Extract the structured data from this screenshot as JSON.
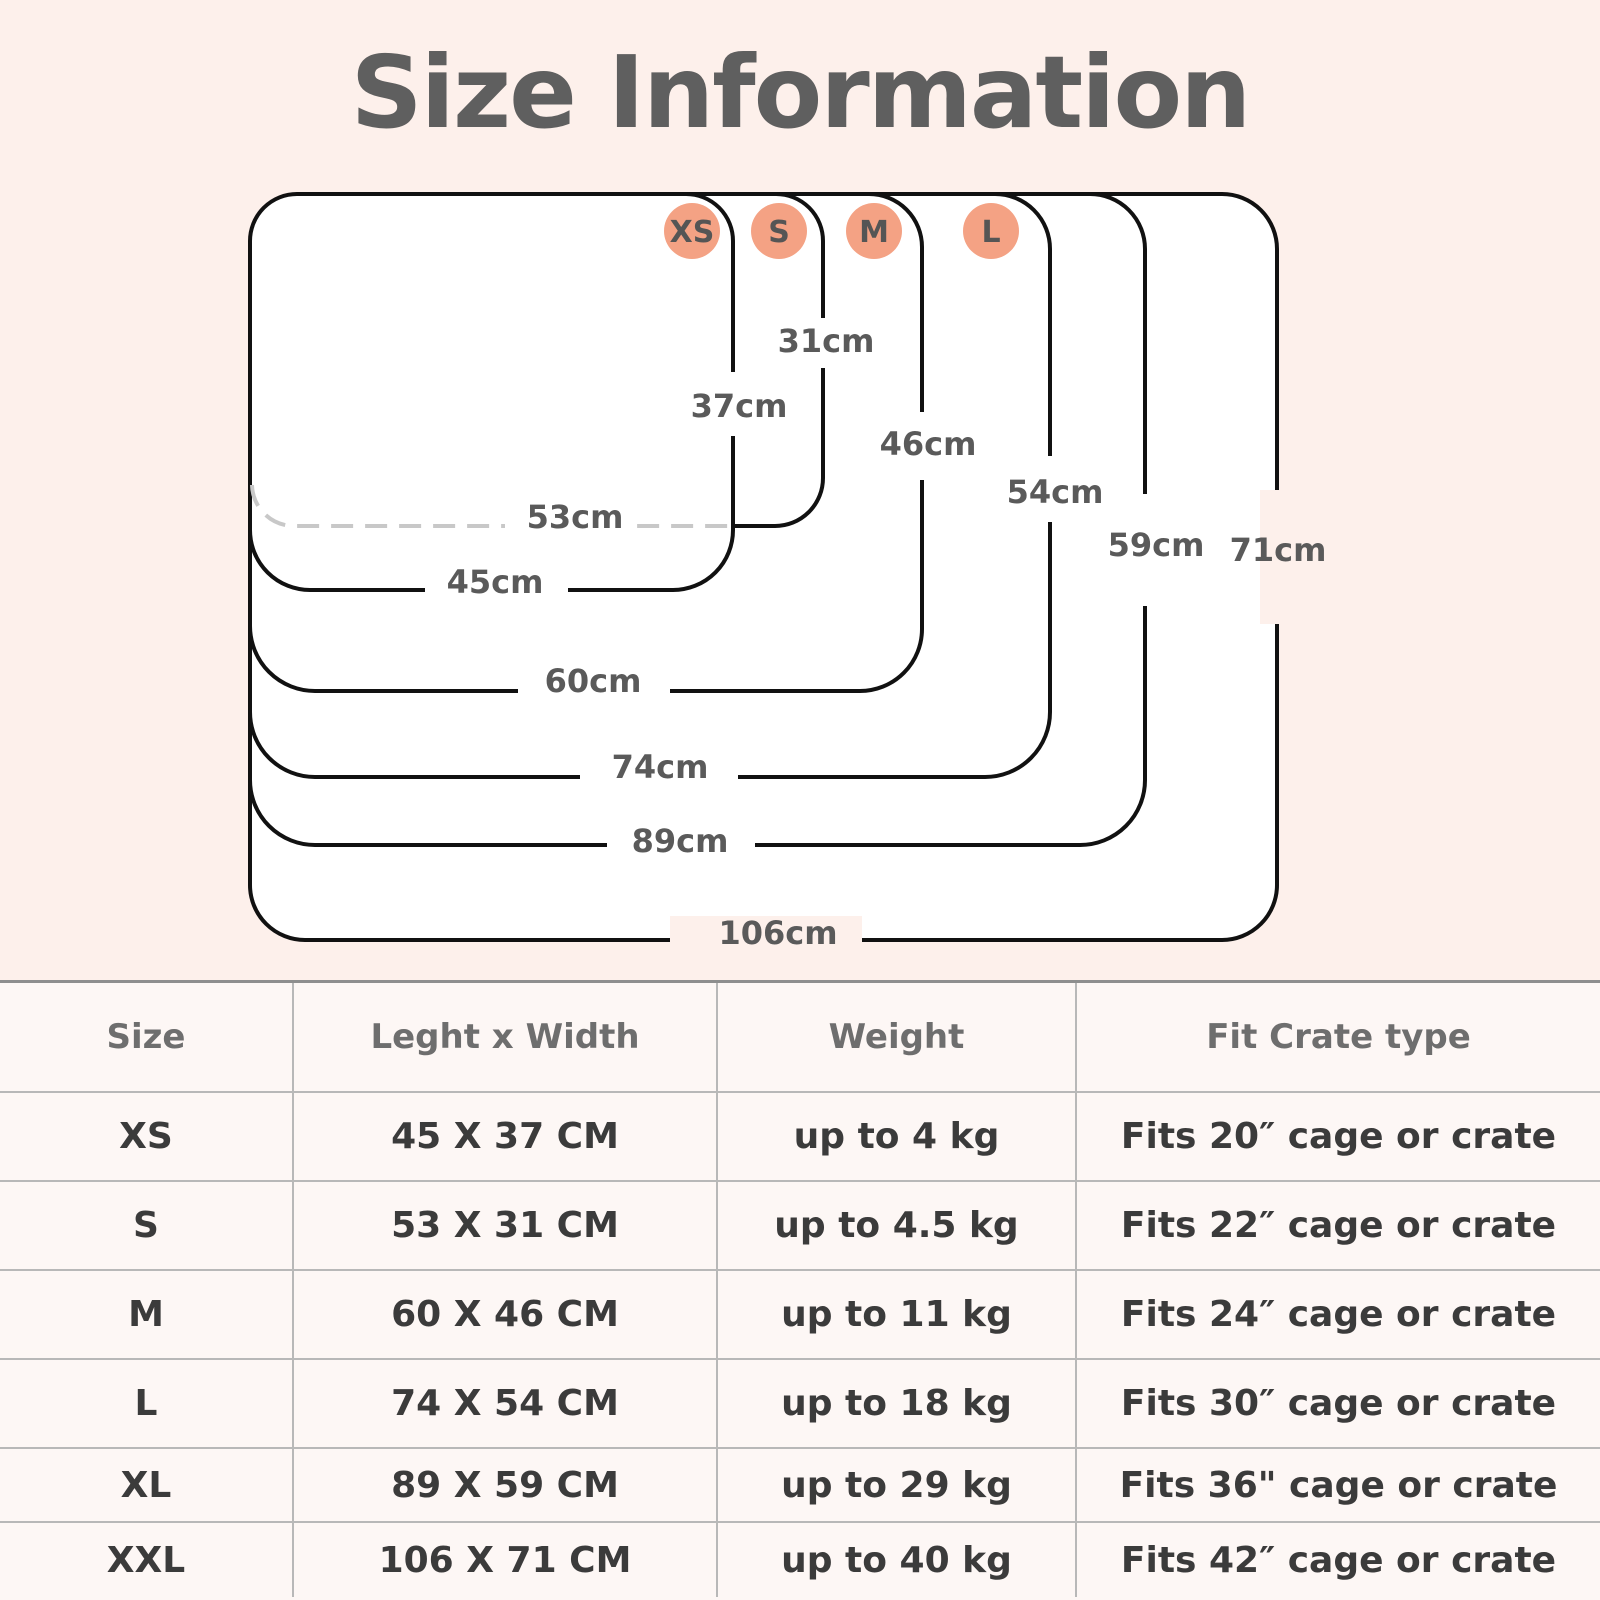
{
  "page": {
    "title": "Size Information"
  },
  "diagram": {
    "badges": [
      "XS",
      "S",
      "M",
      "L"
    ],
    "badge_color": "#f4a284",
    "width_labels": [
      "53cm",
      "45cm",
      "60cm",
      "74cm",
      "89cm",
      "106cm"
    ],
    "height_labels": [
      "31cm",
      "37cm",
      "46cm",
      "54cm",
      "59cm",
      "71cm"
    ]
  },
  "table": {
    "headers": [
      "Size",
      "Leght x Width",
      "Weight",
      "Fit Crate type"
    ],
    "rows": [
      [
        "XS",
        "45 X 37 CM",
        "up to 4 kg",
        "Fits 20″ cage or crate"
      ],
      [
        "S",
        "53 X 31 CM",
        "up to 4.5 kg",
        "Fits 22″ cage or crate"
      ],
      [
        "M",
        "60 X 46 CM",
        "up to 11 kg",
        "Fits 24″ cage or crate"
      ],
      [
        "L",
        "74 X 54 CM",
        "up to 18 kg",
        "Fits 30″ cage or crate"
      ],
      [
        "XL",
        "89 X 59 CM",
        "up to 29 kg",
        "Fits 36\" cage or crate"
      ],
      [
        "XXL",
        "106 X 71 CM",
        "up to 40 kg",
        "Fits 42″ cage or crate"
      ]
    ]
  }
}
